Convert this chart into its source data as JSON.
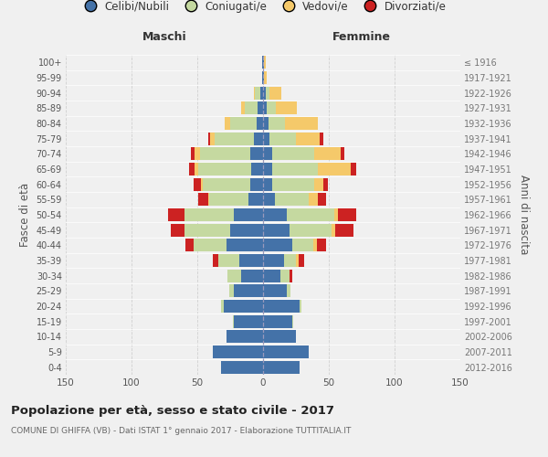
{
  "age_groups": [
    "100+",
    "95-99",
    "90-94",
    "85-89",
    "80-84",
    "75-79",
    "70-74",
    "65-69",
    "60-64",
    "55-59",
    "50-54",
    "45-49",
    "40-44",
    "35-39",
    "30-34",
    "25-29",
    "20-24",
    "15-19",
    "10-14",
    "5-9",
    "0-4"
  ],
  "birth_years": [
    "≤ 1916",
    "1917-1921",
    "1922-1926",
    "1927-1931",
    "1932-1936",
    "1937-1941",
    "1942-1946",
    "1947-1951",
    "1952-1956",
    "1957-1961",
    "1962-1966",
    "1967-1971",
    "1972-1976",
    "1977-1981",
    "1982-1986",
    "1987-1991",
    "1992-1996",
    "1997-2001",
    "2002-2006",
    "2007-2011",
    "2012-2016"
  ],
  "male": {
    "celibi": [
      1,
      1,
      2,
      4,
      5,
      7,
      10,
      9,
      10,
      11,
      22,
      25,
      28,
      18,
      17,
      22,
      30,
      22,
      28,
      38,
      32
    ],
    "coniugati": [
      0,
      0,
      4,
      10,
      20,
      30,
      38,
      40,
      36,
      30,
      38,
      35,
      25,
      16,
      10,
      4,
      2,
      1,
      0,
      0,
      0
    ],
    "vedovi": [
      0,
      0,
      1,
      3,
      4,
      3,
      4,
      3,
      1,
      1,
      0,
      0,
      0,
      0,
      0,
      0,
      0,
      0,
      0,
      0,
      0
    ],
    "divorziati": [
      0,
      0,
      0,
      0,
      0,
      2,
      3,
      4,
      6,
      7,
      12,
      10,
      6,
      4,
      0,
      0,
      0,
      0,
      0,
      0,
      0
    ]
  },
  "female": {
    "nubili": [
      1,
      1,
      2,
      3,
      4,
      5,
      7,
      7,
      7,
      9,
      18,
      20,
      22,
      16,
      13,
      18,
      28,
      22,
      25,
      35,
      28
    ],
    "coniugate": [
      0,
      0,
      3,
      7,
      13,
      20,
      32,
      35,
      32,
      26,
      36,
      32,
      16,
      9,
      7,
      3,
      1,
      1,
      0,
      0,
      0
    ],
    "vedove": [
      1,
      2,
      9,
      16,
      25,
      18,
      20,
      25,
      7,
      7,
      3,
      3,
      3,
      2,
      0,
      0,
      0,
      0,
      0,
      0,
      0
    ],
    "divorziate": [
      0,
      0,
      0,
      0,
      0,
      3,
      3,
      4,
      3,
      6,
      14,
      14,
      7,
      4,
      2,
      0,
      0,
      0,
      0,
      0,
      0
    ]
  },
  "colors": {
    "celibi": "#4472a8",
    "coniugati": "#c5d9a0",
    "vedovi": "#f5c96a",
    "divorziati": "#cc2222"
  },
  "xlim": 150,
  "title": "Popolazione per età, sesso e stato civile - 2017",
  "subtitle": "COMUNE DI GHIFFA (VB) - Dati ISTAT 1° gennaio 2017 - Elaborazione TUTTITALIA.IT",
  "ylabel_left": "Fasce di età",
  "ylabel_right": "Anni di nascita",
  "xlabel_left": "Maschi",
  "xlabel_right": "Femmine",
  "legend_labels": [
    "Celibi/Nubili",
    "Coniugati/e",
    "Vedovi/e",
    "Divorziati/e"
  ],
  "bg_color": "#f0f0f0"
}
